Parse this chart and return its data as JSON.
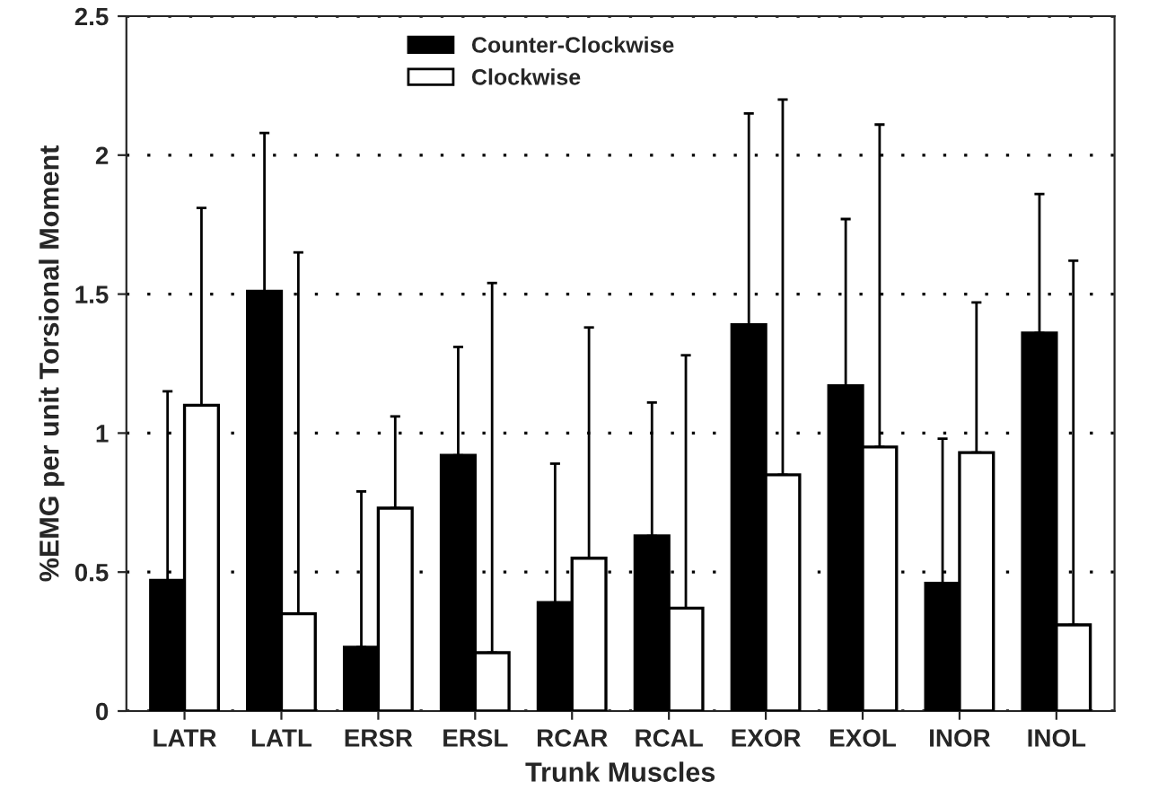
{
  "chart_data": {
    "type": "bar",
    "xlabel": "Trunk Muscles",
    "ylabel": "%EMG per unit Torsional Moment",
    "categories": [
      "LATR",
      "LATL",
      "ERSR",
      "ERSL",
      "RCAR",
      "RCAL",
      "EXOR",
      "EXOL",
      "INOR",
      "INOL"
    ],
    "series": [
      {
        "name": "Counter-Clockwise",
        "color": "#000000",
        "values": [
          0.47,
          1.51,
          0.23,
          0.92,
          0.39,
          0.63,
          1.39,
          1.17,
          0.46,
          1.36
        ],
        "errors": [
          [
            0.47,
            1.15
          ],
          [
            1.51,
            2.08
          ],
          [
            0.23,
            0.79
          ],
          [
            0.92,
            1.31
          ],
          [
            0.39,
            0.89
          ],
          [
            0.63,
            1.11
          ],
          [
            1.39,
            2.15
          ],
          [
            1.17,
            1.77
          ],
          [
            0.46,
            0.98
          ],
          [
            1.36,
            1.86
          ]
        ]
      },
      {
        "name": "Clockwise",
        "color": "#ffffff",
        "values": [
          1.1,
          0.35,
          0.73,
          0.21,
          0.55,
          0.37,
          0.85,
          0.95,
          0.93,
          0.31
        ],
        "errors": [
          [
            1.1,
            1.81
          ],
          [
            0.35,
            1.65
          ],
          [
            0.73,
            1.06
          ],
          [
            0.21,
            1.54
          ],
          [
            0.55,
            1.38
          ],
          [
            0.37,
            1.28
          ],
          [
            0.85,
            2.2
          ],
          [
            0.95,
            2.11
          ],
          [
            0.93,
            1.47
          ],
          [
            0.31,
            1.62
          ]
        ]
      }
    ],
    "ylim": [
      0,
      2.5
    ],
    "yticks": [
      0,
      0.5,
      1,
      1.5,
      2,
      2.5
    ],
    "grid": "y",
    "legend": "top"
  }
}
